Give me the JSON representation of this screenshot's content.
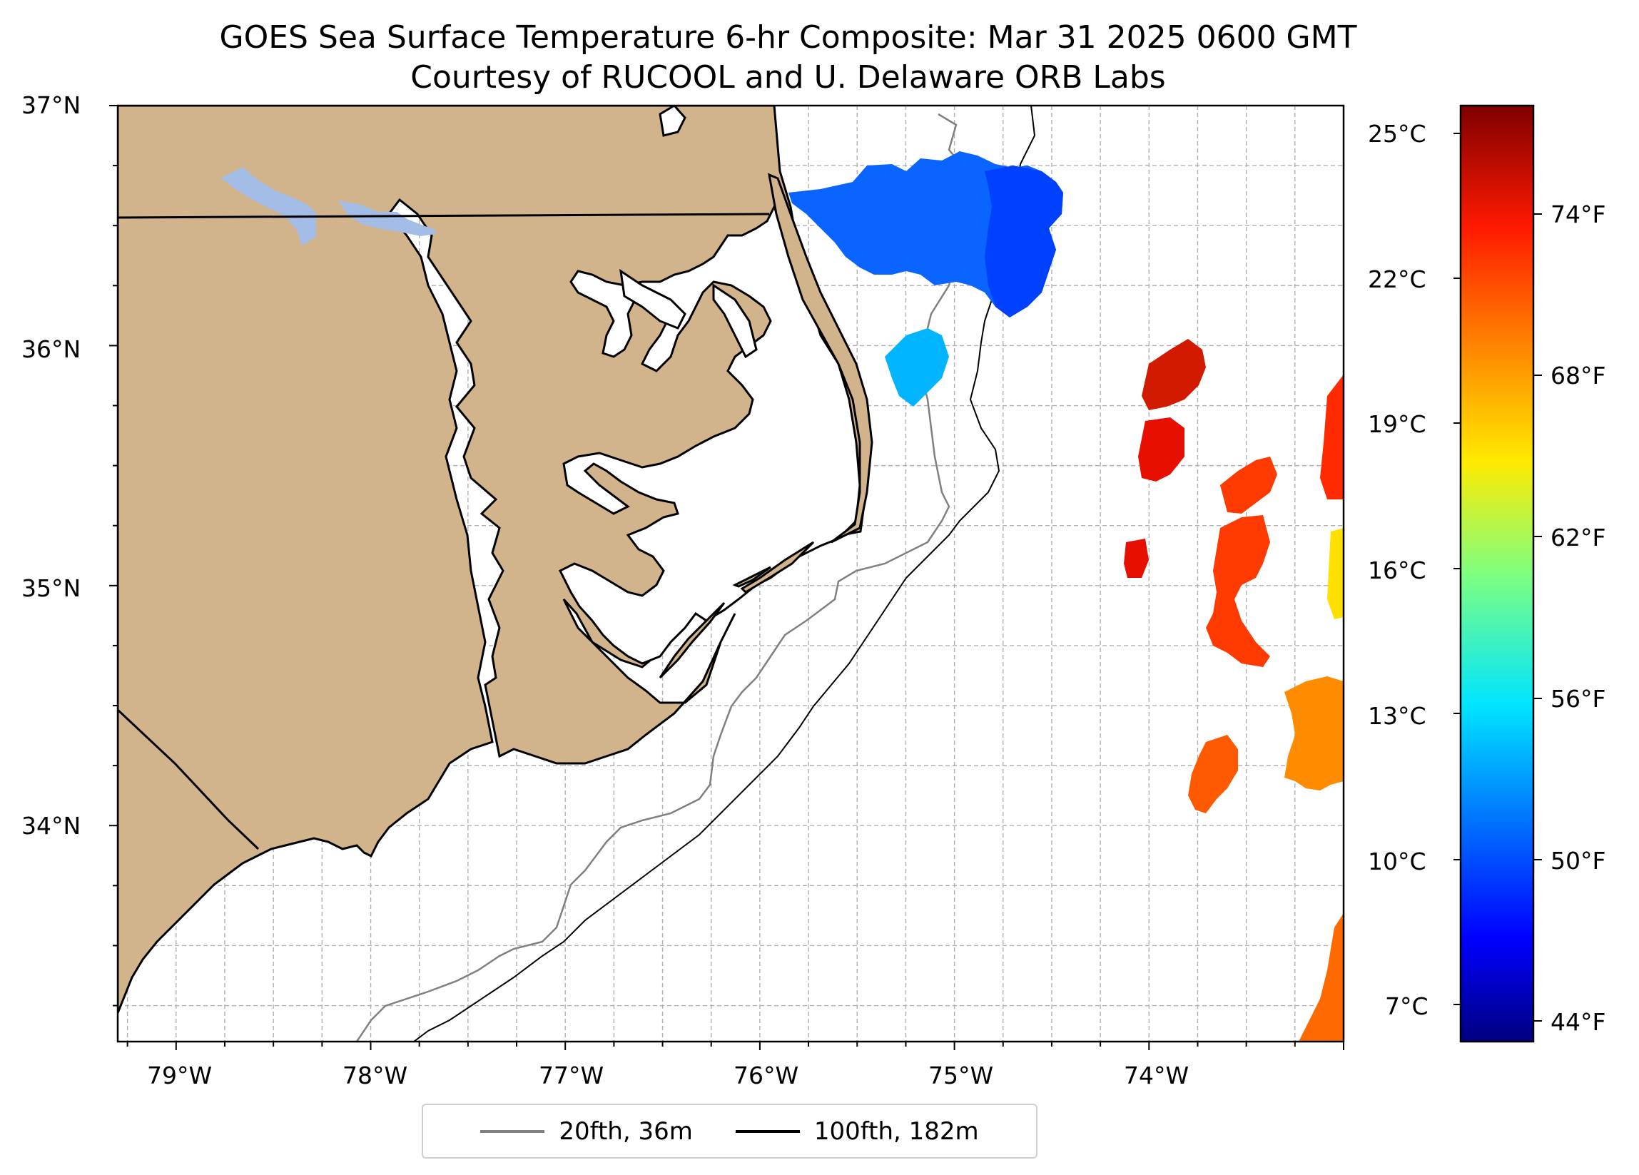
{
  "title": {
    "line1": "GOES Sea Surface Temperature 6-hr Composite: Mar 31 2025 0600 GMT",
    "line2": "Courtesy of RUCOOL and U. Delaware ORB Labs"
  },
  "axes": {
    "lon_labels": [
      "79°W",
      "78°W",
      "77°W",
      "76°W",
      "75°W",
      "74°W"
    ],
    "lat_labels": [
      "37°N",
      "36°N",
      "35°N",
      "34°N"
    ],
    "lon_range": [
      -79.3,
      -73.0
    ],
    "lat_range": [
      33.1,
      37.0
    ]
  },
  "colorbar": {
    "celsius_labels": [
      "25°C",
      "22°C",
      "19°C",
      "16°C",
      "13°C",
      "10°C",
      "7°C"
    ],
    "fahrenheit_labels": [
      "74°F",
      "68°F",
      "62°F",
      "56°F",
      "50°F",
      "44°F"
    ],
    "colormap": "jet",
    "colors": [
      "#00007f",
      "#0000ff",
      "#007fff",
      "#00e5ff",
      "#7fff7f",
      "#ffea00",
      "#ff7f00",
      "#ff1a00",
      "#7f0000"
    ]
  },
  "legend": {
    "items": [
      {
        "label": "20fth, 36m",
        "color": "#808080"
      },
      {
        "label": "100fth, 182m",
        "color": "#000000"
      }
    ]
  },
  "colors": {
    "land": "#d2b48c",
    "lake": "#a3bde6",
    "grid": "#b0b0b0"
  }
}
